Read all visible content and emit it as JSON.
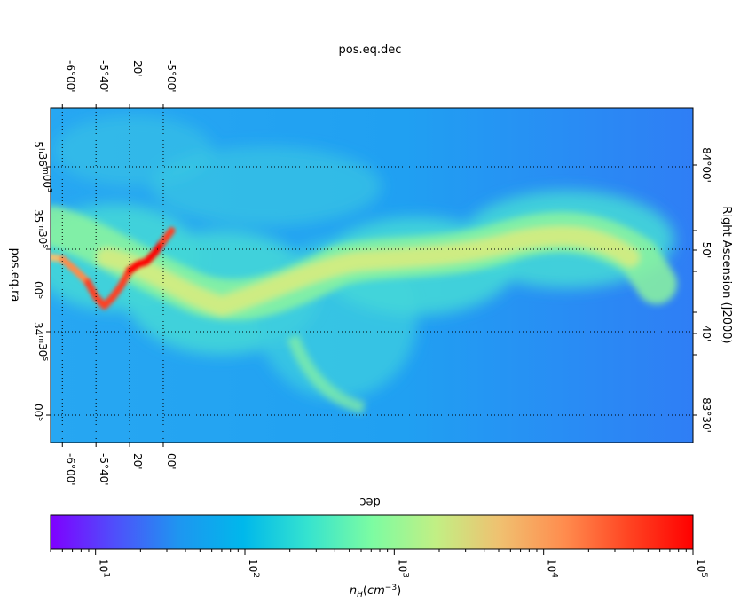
{
  "chart_data": {
    "type": "heatmap",
    "title": "",
    "top_label": "pos.eq.dec",
    "left_label": "pos.eq.ra",
    "right_label": "Right Ascension (J2000)",
    "bottom_label": "dec",
    "colorbar_label": "n_H(cm^-3)",
    "colorbar_range": [
      5,
      100000
    ],
    "colorbar_scale": "log",
    "colorbar_ticks": [
      {
        "value": 10,
        "base": "10",
        "exp": "1"
      },
      {
        "value": 100,
        "base": "10",
        "exp": "2"
      },
      {
        "value": 1000,
        "base": "10",
        "exp": "3"
      },
      {
        "value": 10000,
        "base": "10",
        "exp": "4"
      },
      {
        "value": 100000,
        "base": "10",
        "exp": "5"
      }
    ],
    "colormap": [
      "#7f00ff",
      "#4f4ffb",
      "#1e96f0",
      "#00c0e8",
      "#38e8c8",
      "#7cfc9c",
      "#b8f088",
      "#f0c070",
      "#ff8c48",
      "#ff4020",
      "#ff0000"
    ],
    "x_axis_range_dec_arcmin": [
      -367,
      15
    ],
    "dec_ticks": [
      {
        "value": -360,
        "label": "-6°00'"
      },
      {
        "value": -340,
        "label": "-5°40'"
      },
      {
        "value": -320,
        "label": "20'"
      },
      {
        "value": -300,
        "label": "-5°00'"
      }
    ],
    "dec_ticks_bottom": [
      {
        "value": -360,
        "label": "-6°00'"
      },
      {
        "value": -340,
        "label": "-5°40'"
      },
      {
        "value": -320,
        "label": "20'"
      },
      {
        "value": -300,
        "label": "00'"
      }
    ],
    "ra_ticks_left": [
      {
        "value": 0,
        "base": "5",
        "h": "h",
        "m_val": "36",
        "m": "m",
        "s_val": "00",
        "s": "s"
      },
      {
        "value": 1,
        "base": "35",
        "m": "m",
        "s_val": "30",
        "s": "s"
      },
      {
        "value": 2,
        "base": "00",
        "s": "s"
      },
      {
        "value": 3,
        "base": "34",
        "m": "m",
        "s_val": "30",
        "s": "s"
      },
      {
        "value": 4,
        "base": "00",
        "s": "s"
      }
    ],
    "ra_ticks_right": [
      {
        "value": 84.0,
        "label": "84°00'"
      },
      {
        "value": 83.833,
        "label": "50'"
      },
      {
        "value": 83.667,
        "label": "40'"
      },
      {
        "value": 83.5,
        "label": "83°30'"
      }
    ],
    "filament_spine_dec": [
      -367,
      -360,
      -352,
      -345,
      -340,
      -335,
      -330,
      -325,
      -320,
      -315,
      -310,
      -305,
      -300,
      -295
    ],
    "filament_peak_density": [
      400,
      8000,
      20000,
      15000,
      60000,
      40000,
      20000,
      30000,
      80000,
      60000,
      90000,
      100000,
      100000,
      20000
    ],
    "grid": "dotted"
  }
}
